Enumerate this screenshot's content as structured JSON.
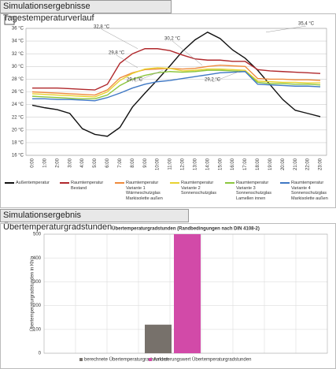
{
  "chart_data": [
    {
      "type": "line",
      "heading": "Simulationsergebnisse Tagestemperaturverlauf",
      "categories": [
        "0:00",
        "1:00",
        "2:00",
        "3:00",
        "4:00",
        "5:00",
        "6:00",
        "7:00",
        "8:00",
        "9:00",
        "10:00",
        "11:00",
        "12:00",
        "13:00",
        "14:00",
        "15:00",
        "16:00",
        "17:00",
        "18:00",
        "19:00",
        "20:00",
        "21:00",
        "22:00",
        "23:00"
      ],
      "series": [
        {
          "name": "Außentemperatur",
          "color": "#111111",
          "values": [
            23.9,
            23.5,
            23.2,
            22.6,
            20.2,
            19.3,
            19.0,
            20.4,
            23.6,
            25.8,
            27.9,
            30.1,
            32.4,
            34.2,
            35.4,
            34.4,
            32.6,
            31.3,
            29.4,
            27.1,
            24.8,
            23.1,
            22.6,
            22.1
          ]
        },
        {
          "name": "Raumtemperatur Bestand",
          "color": "#b0282c",
          "values": [
            26.6,
            26.6,
            26.6,
            26.5,
            26.4,
            26.3,
            27.2,
            30.5,
            32.0,
            32.8,
            32.8,
            32.5,
            31.8,
            31.2,
            31.0,
            31.0,
            30.8,
            30.8,
            29.5,
            29.3,
            29.2,
            29.1,
            29.0,
            28.9
          ]
        },
        {
          "name": "Raumtemperatur Variante 1 Wärmeschutzglas Markisolette außen",
          "color": "#ee8a3c",
          "values": [
            26.0,
            25.9,
            25.8,
            25.7,
            25.6,
            25.5,
            26.3,
            28.2,
            29.0,
            29.5,
            29.6,
            29.7,
            29.6,
            29.7,
            30.0,
            30.2,
            30.1,
            30.0,
            28.1,
            28.0,
            28.0,
            27.9,
            27.9,
            27.8
          ]
        },
        {
          "name": "Raumtemperatur Variante 2 Sonnenschutzglas",
          "color": "#e8d230",
          "values": [
            25.7,
            25.6,
            25.5,
            25.4,
            25.3,
            25.2,
            26.0,
            27.8,
            28.9,
            29.6,
            29.8,
            29.7,
            29.3,
            29.4,
            29.6,
            29.6,
            29.5,
            29.4,
            27.7,
            27.6,
            27.5,
            27.5,
            27.4,
            27.4
          ]
        },
        {
          "name": "Raumtemperatur Variante 3 Sonnenschutzglas Lamellen innen",
          "color": "#8cc63e",
          "values": [
            25.3,
            25.2,
            25.1,
            25.0,
            24.9,
            24.9,
            25.5,
            27.0,
            28.0,
            28.6,
            29.0,
            29.2,
            29.1,
            29.2,
            29.4,
            29.4,
            29.3,
            29.2,
            27.5,
            27.3,
            27.3,
            27.2,
            27.2,
            27.1
          ]
        },
        {
          "name": "Raumtemperatur Variante 4 Sonnenschutzglas Markisolette außen",
          "color": "#3f78c4",
          "values": [
            24.9,
            24.9,
            24.8,
            24.8,
            24.7,
            24.6,
            25.1,
            25.8,
            26.6,
            27.2,
            27.6,
            27.8,
            28.1,
            28.4,
            28.7,
            29.0,
            29.1,
            29.2,
            27.2,
            27.1,
            27.0,
            26.9,
            26.9,
            26.8
          ]
        }
      ],
      "annotations": [
        "32,8 °C",
        "35,4 °C",
        "29,8 °C",
        "30,2 °C",
        "29,4 °C",
        "29,2 °C"
      ],
      "ylim": [
        16,
        36
      ],
      "yticks": [
        {
          "value": 16,
          "label": "16 °C"
        },
        {
          "value": 18,
          "label": "18 °C"
        },
        {
          "value": 20,
          "label": "20 °C"
        },
        {
          "value": 22,
          "label": "22 °C"
        },
        {
          "value": 24,
          "label": "24 °C"
        },
        {
          "value": 26,
          "label": "26 °C"
        },
        {
          "value": 28,
          "label": "28 °C"
        },
        {
          "value": 30,
          "label": "30 °C"
        },
        {
          "value": 32,
          "label": "32 °C"
        },
        {
          "value": 34,
          "label": "34 °C"
        },
        {
          "value": 36,
          "label": "36 °C"
        }
      ],
      "grid": true
    },
    {
      "type": "bar",
      "heading": "Simulationsergebnis Übertemperaturgradstunden",
      "title": "Übertemperaturgradstunden (Randbedingungen nach DIN 4108-2)",
      "ylabel": "Übertemperaturgradstunden in Kh/a",
      "categories": [
        null
      ],
      "series": [
        {
          "name": "berechnete Übertemperaturgradstunden",
          "color": "#77716b",
          "values": [
            120
          ]
        },
        {
          "name": "Anforderungswert Übertemperaturgradstunden",
          "color": "#d24aa8",
          "values": [
            500
          ]
        }
      ],
      "ylim": [
        0,
        500
      ],
      "yticks": [
        0,
        100,
        200,
        300,
        400,
        500
      ],
      "grid": true
    }
  ]
}
